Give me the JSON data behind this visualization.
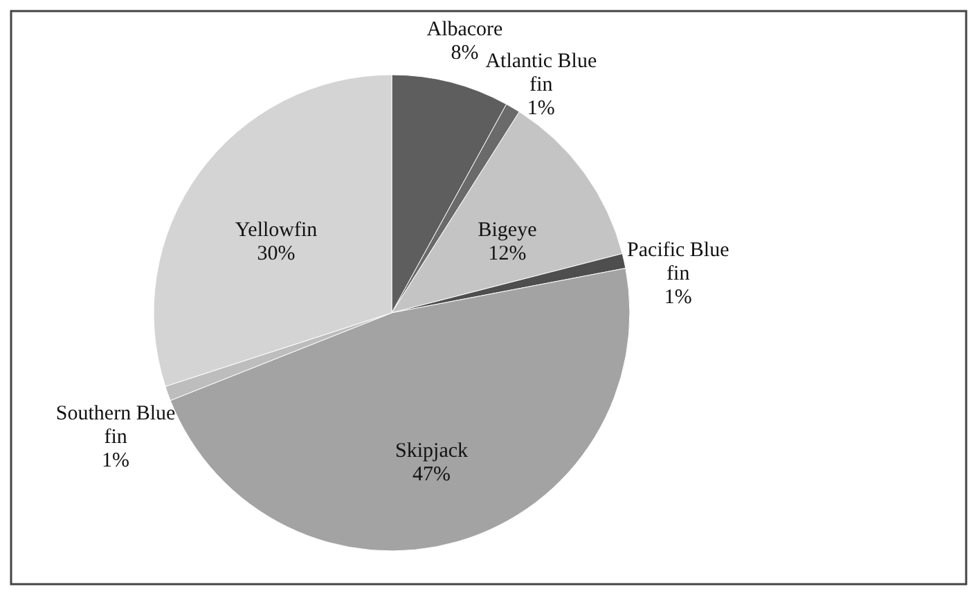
{
  "chart_data": {
    "type": "pie",
    "categories": [
      "Albacore",
      "Atlantic Blue fin",
      "Bigeye",
      "Pacific Blue fin",
      "Skipjack",
      "Southern Blue fin",
      "Yellowfin"
    ],
    "values": [
      8,
      1,
      12,
      1,
      47,
      1,
      30
    ],
    "value_labels": [
      "8%",
      "1%",
      "12%",
      "1%",
      "47%",
      "1%",
      "30%"
    ],
    "colors": [
      "#5e5e5e",
      "#6a6a6a",
      "#c4c4c4",
      "#4e4e4e",
      "#a3a3a3",
      "#bdbdbd",
      "#d4d4d4"
    ]
  }
}
